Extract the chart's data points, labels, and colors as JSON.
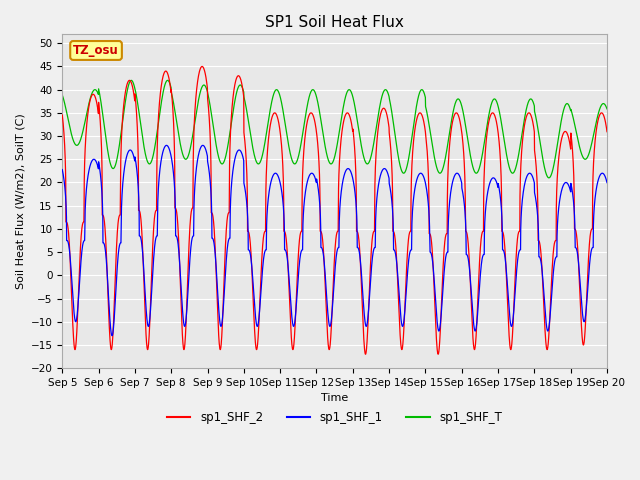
{
  "title": "SP1 Soil Heat Flux",
  "xlabel": "Time",
  "ylabel": "Soil Heat Flux (W/m2), SoilT (C)",
  "ylim": [
    -20,
    52
  ],
  "yticks": [
    -20,
    -15,
    -10,
    -5,
    0,
    5,
    10,
    15,
    20,
    25,
    30,
    35,
    40,
    45,
    50
  ],
  "num_days": 15,
  "bg_color": "#e8e8e8",
  "fig_facecolor": "#f0f0f0",
  "colors": {
    "sp1_SHF_2": "#ff0000",
    "sp1_SHF_1": "#0000ff",
    "sp1_SHF_T": "#00bb00"
  },
  "legend_labels": [
    "sp1_SHF_2",
    "sp1_SHF_1",
    "sp1_SHF_T"
  ],
  "tz_annotation": "TZ_osu",
  "tz_box_facecolor": "#ffff99",
  "tz_box_edgecolor": "#cc8800",
  "title_fontsize": 11,
  "axis_label_fontsize": 8,
  "tick_fontsize": 7.5,
  "legend_fontsize": 8.5,
  "red_peaks": [
    39,
    42,
    44,
    45,
    43,
    35,
    35,
    35,
    36,
    35,
    35,
    35,
    35,
    31,
    35
  ],
  "red_troughs": [
    -16,
    -16,
    -16,
    -16,
    -16,
    -16,
    -16,
    -16,
    -17,
    -16,
    -17,
    -16,
    -16,
    -16,
    -15
  ],
  "blue_peaks": [
    25,
    27,
    28,
    28,
    27,
    22,
    22,
    23,
    23,
    22,
    22,
    21,
    22,
    20,
    22
  ],
  "blue_troughs": [
    -10,
    -13,
    -11,
    -11,
    -11,
    -11,
    -11,
    -11,
    -11,
    -11,
    -12,
    -12,
    -11,
    -12,
    -10
  ],
  "green_peaks": [
    40,
    42,
    42,
    41,
    41,
    40,
    40,
    40,
    40,
    40,
    38,
    38,
    38,
    37,
    37
  ],
  "green_troughs": [
    28,
    23,
    24,
    25,
    24,
    24,
    24,
    24,
    24,
    22,
    22,
    22,
    22,
    21,
    25
  ],
  "ppd": 200
}
